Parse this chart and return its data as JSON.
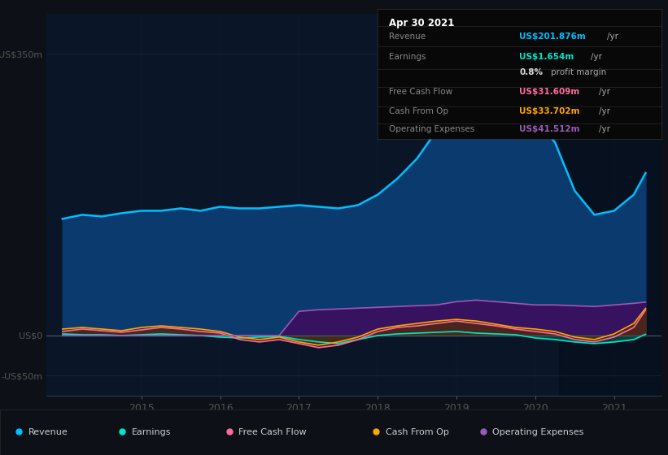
{
  "bg_color": "#0d1117",
  "plot_area_color": "#0a1628",
  "info_box": {
    "date": "Apr 30 2021",
    "rows": [
      {
        "label": "Revenue",
        "value": "US$201.876m",
        "unit": "/yr",
        "color": "#00bfff"
      },
      {
        "label": "Earnings",
        "value": "US$1.654m",
        "unit": "/yr",
        "color": "#00e5cc"
      },
      {
        "label": "",
        "value": "0.8%",
        "unit": "profit margin",
        "color": "#dddddd"
      },
      {
        "label": "Free Cash Flow",
        "value": "US$31.609m",
        "unit": "/yr",
        "color": "#ff6b9d"
      },
      {
        "label": "Cash From Op",
        "value": "US$33.702m",
        "unit": "/yr",
        "color": "#ffa500"
      },
      {
        "label": "Operating Expenses",
        "value": "US$41.512m",
        "unit": "/yr",
        "color": "#9b59b6"
      }
    ]
  },
  "years": [
    2014.0,
    2014.25,
    2014.5,
    2014.75,
    2015.0,
    2015.25,
    2015.5,
    2015.75,
    2016.0,
    2016.25,
    2016.5,
    2016.75,
    2017.0,
    2017.25,
    2017.5,
    2017.75,
    2018.0,
    2018.25,
    2018.5,
    2018.75,
    2019.0,
    2019.25,
    2019.5,
    2019.75,
    2020.0,
    2020.25,
    2020.5,
    2020.75,
    2021.0,
    2021.25,
    2021.4
  ],
  "revenue": [
    145,
    150,
    148,
    152,
    155,
    155,
    158,
    155,
    160,
    158,
    158,
    160,
    162,
    160,
    158,
    162,
    175,
    195,
    220,
    255,
    290,
    310,
    305,
    300,
    270,
    240,
    180,
    150,
    155,
    175,
    202
  ],
  "earnings": [
    2,
    1,
    1,
    0,
    1,
    2,
    1,
    0,
    -2,
    -3,
    -2,
    -1,
    -5,
    -8,
    -10,
    -5,
    0,
    2,
    3,
    4,
    5,
    3,
    2,
    1,
    -3,
    -5,
    -8,
    -10,
    -8,
    -5,
    1.654
  ],
  "free_cash_flow": [
    5,
    8,
    6,
    4,
    7,
    10,
    8,
    5,
    3,
    -5,
    -8,
    -5,
    -10,
    -15,
    -12,
    -5,
    5,
    10,
    12,
    15,
    18,
    15,
    12,
    8,
    5,
    2,
    -5,
    -8,
    -2,
    10,
    31.6
  ],
  "cash_from_op": [
    8,
    10,
    8,
    6,
    10,
    12,
    10,
    8,
    5,
    -2,
    -5,
    -2,
    -8,
    -12,
    -8,
    -2,
    8,
    12,
    15,
    18,
    20,
    18,
    14,
    10,
    8,
    5,
    -2,
    -5,
    2,
    15,
    33.7
  ],
  "operating_expenses": [
    0,
    0,
    0,
    0,
    0,
    0,
    0,
    0,
    0,
    0,
    0,
    0,
    30,
    32,
    33,
    34,
    35,
    36,
    37,
    38,
    42,
    44,
    42,
    40,
    38,
    38,
    37,
    36,
    38,
    40,
    41.5
  ],
  "shade_start": 2020.3,
  "shade_end": 2021.6,
  "ylim": [
    -75,
    400
  ],
  "yticks": [
    -50,
    0,
    350
  ],
  "ytick_labels": [
    "-US$50m",
    "US$0",
    "US$350m"
  ],
  "xticks": [
    2015,
    2016,
    2017,
    2018,
    2019,
    2020,
    2021
  ],
  "xlim": [
    2013.8,
    2021.6
  ],
  "colors": {
    "revenue_line": "#00bfff",
    "revenue_fill": "#0a3a6e",
    "earnings_line": "#00e5cc",
    "earnings_fill": "#005544",
    "free_cash_flow_line": "#ff6b9d",
    "free_cash_flow_fill": "#5a1a3a",
    "cash_from_op_line": "#ffa500",
    "cash_from_op_fill": "#4a3000",
    "op_expenses_line": "#9b59b6",
    "op_expenses_fill": "#3a1060"
  },
  "legend": [
    {
      "label": "Revenue",
      "color": "#00bfff"
    },
    {
      "label": "Earnings",
      "color": "#00e5cc"
    },
    {
      "label": "Free Cash Flow",
      "color": "#ff6b9d"
    },
    {
      "label": "Cash From Op",
      "color": "#ffa500"
    },
    {
      "label": "Operating Expenses",
      "color": "#9b59b6"
    }
  ]
}
